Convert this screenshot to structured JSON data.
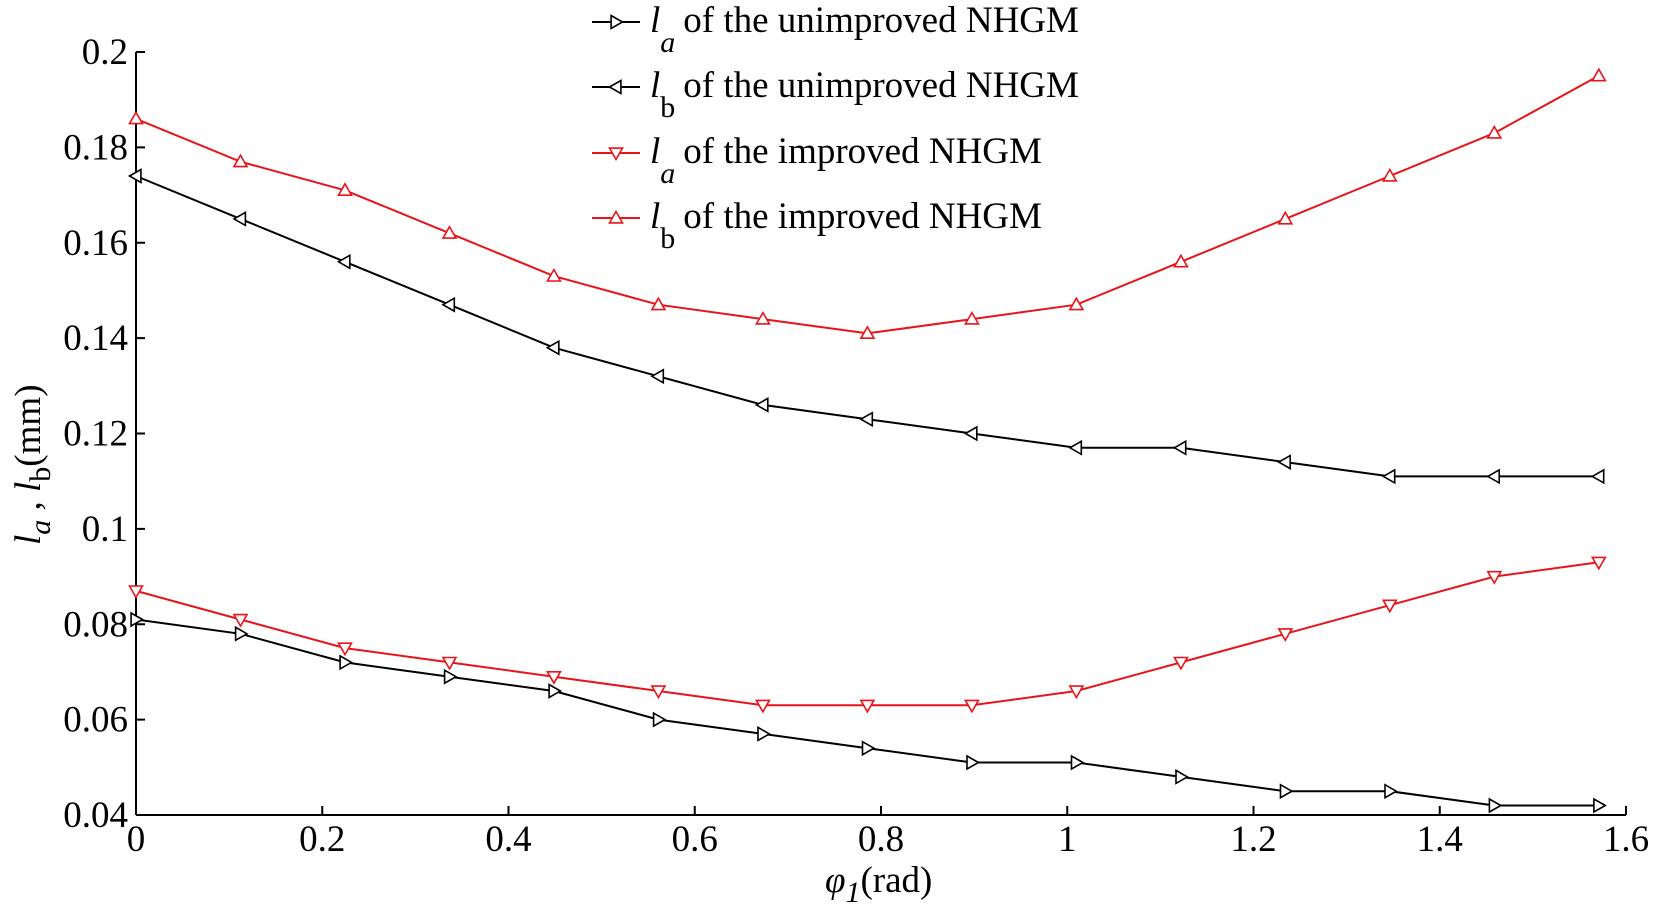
{
  "chart_data": {
    "type": "line",
    "title": "",
    "xlabel": {
      "symbol": "φ",
      "subscript": "1",
      "unit": "(rad)"
    },
    "ylabel": {
      "la": "l",
      "la_sub": "a",
      "separator": " , ",
      "lb": "l",
      "lb_sub": "b",
      "unit": "(mm)"
    },
    "xlim": [
      0,
      1.6
    ],
    "ylim": [
      0.04,
      0.2
    ],
    "xticks": [
      0,
      0.2,
      0.4,
      0.6,
      0.8,
      1,
      1.2,
      1.4,
      1.6
    ],
    "xtick_labels": [
      "0",
      "0.2",
      "0.4",
      "0.6",
      "0.8",
      "1",
      "1.2",
      "1.4",
      "1.6"
    ],
    "yticks": [
      0.04,
      0.06,
      0.08,
      0.1,
      0.12,
      0.14,
      0.16,
      0.18,
      0.2
    ],
    "ytick_labels": [
      "0.04",
      "0.06",
      "0.08",
      "0.1",
      "0.12",
      "0.14",
      "0.16",
      "0.18",
      "0.2"
    ],
    "grid": false,
    "legend_position": "top-center",
    "x": [
      0,
      0.1122,
      0.2244,
      0.3366,
      0.4488,
      0.561,
      0.6732,
      0.7854,
      0.8976,
      1.0098,
      1.122,
      1.2342,
      1.3464,
      1.4586,
      1.5708
    ],
    "series": [
      {
        "name": "la of the unimproved NHGM",
        "legend_symbol": "l",
        "legend_sub": "a",
        "legend_text": "of the unimproved NHGM",
        "color": "#000000",
        "marker": "triangle-right",
        "values": [
          0.081,
          0.078,
          0.072,
          0.069,
          0.066,
          0.06,
          0.057,
          0.054,
          0.051,
          0.051,
          0.048,
          0.045,
          0.045,
          0.042,
          0.042
        ]
      },
      {
        "name": "lb of the unimproved NHGM",
        "legend_symbol": "l",
        "legend_sub": "b",
        "legend_text": "of the unimproved NHGM",
        "color": "#000000",
        "marker": "triangle-left",
        "values": [
          0.174,
          0.165,
          0.156,
          0.147,
          0.138,
          0.132,
          0.126,
          0.123,
          0.12,
          0.117,
          0.117,
          0.114,
          0.111,
          0.111,
          0.111
        ]
      },
      {
        "name": "la of the improved NHGM",
        "legend_symbol": "l",
        "legend_sub": "a",
        "legend_text": "of the improved NHGM",
        "color": "#e8141a",
        "marker": "triangle-down",
        "values": [
          0.087,
          0.081,
          0.075,
          0.072,
          0.069,
          0.066,
          0.063,
          0.063,
          0.063,
          0.066,
          0.072,
          0.078,
          0.084,
          0.09,
          0.093
        ]
      },
      {
        "name": "lb of the improved NHGM",
        "legend_symbol": "l",
        "legend_sub": "b",
        "legend_text": "of the improved NHGM",
        "color": "#e8141a",
        "marker": "triangle-up",
        "values": [
          0.186,
          0.177,
          0.171,
          0.162,
          0.153,
          0.147,
          0.144,
          0.141,
          0.144,
          0.147,
          0.156,
          0.165,
          0.174,
          0.183,
          0.195
        ]
      }
    ]
  }
}
